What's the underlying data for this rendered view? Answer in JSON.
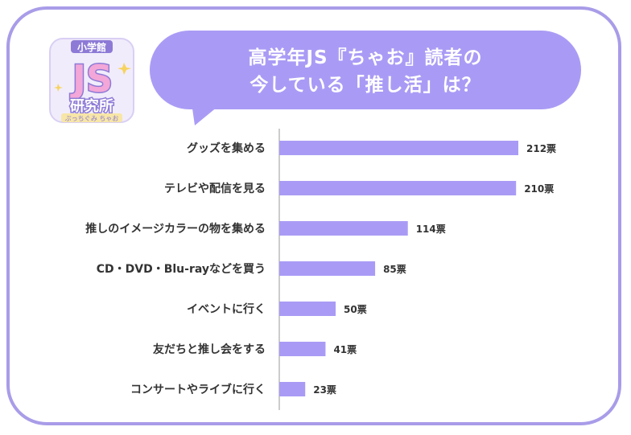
{
  "logo": {
    "top_text": "小学館",
    "main_text": "JS",
    "sub_text": "研究所",
    "tagline": "ぷっちぐみ ちゃお",
    "colors": {
      "pink": "#f3a6d8",
      "purple": "#8d7ad6",
      "cream": "#f7e6a6"
    }
  },
  "title": {
    "line1": "高学年JS『ちゃお』読者の",
    "line2": "今している「推し活」は？"
  },
  "colors": {
    "bar": "#a99bf5",
    "frame": "#a99ce8",
    "bubble": "#a99bf5",
    "axis": "#999999",
    "text": "#333333"
  },
  "chart_data": {
    "type": "bar",
    "orientation": "horizontal",
    "categories": [
      "グッズを集める",
      "テレビや配信を見る",
      "推しのイメージカラーの物を集める",
      "CD・DVD・Blu-rayなどを買う",
      "イベントに行く",
      "友だちと推し会をする",
      "コンサートやライブに行く"
    ],
    "values": [
      212,
      210,
      114,
      85,
      50,
      41,
      23
    ],
    "value_labels": [
      "212票",
      "210票",
      "114票",
      "85票",
      "50票",
      "41票",
      "23票"
    ],
    "unit": "票",
    "xlim": [
      0,
      212
    ],
    "grid": false
  }
}
